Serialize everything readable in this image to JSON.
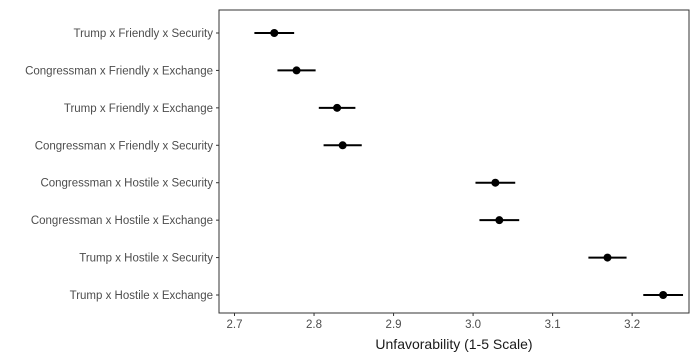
{
  "chart_data": {
    "type": "scatter",
    "title": "",
    "xlabel": "Unfavorability (1-5 Scale)",
    "ylabel": "",
    "xlim": [
      2.693,
      2.703
    ],
    "xlim_note": "",
    "xticks": [
      2.7,
      2.8,
      2.9,
      3.0,
      3.1,
      3.2
    ],
    "xtick_labels": [
      "2.7",
      "2.8",
      "2.9",
      "3.0",
      "3.1",
      "3.2"
    ],
    "grid": false,
    "legend": "none",
    "point_color": "#000000",
    "categories": [
      "Trump x Friendly x Security",
      "Congressman x Friendly x Exchange",
      "Trump x Friendly x Exchange",
      "Congressman x Friendly x Security",
      "Congressman x Hostile x Security",
      "Congressman x Hostile x Exchange",
      "Trump x Hostile x Security",
      "Trump x Hostile x Exchange"
    ],
    "estimates": [
      2.75,
      2.778,
      2.829,
      2.836,
      3.028,
      3.033,
      3.169,
      3.239
    ],
    "ci_low": [
      2.725,
      2.754,
      2.806,
      2.812,
      3.003,
      3.008,
      3.145,
      3.214
    ],
    "ci_high": [
      2.775,
      2.802,
      2.852,
      2.86,
      3.053,
      3.058,
      3.193,
      3.264
    ]
  }
}
